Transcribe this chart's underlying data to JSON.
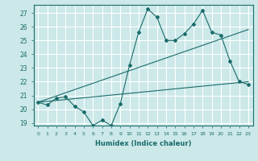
{
  "title": "",
  "xlabel": "Humidex (Indice chaleur)",
  "background_color": "#cce8e8",
  "grid_color": "#ffffff",
  "line_color": "#1a6b6b",
  "xlim": [
    -0.5,
    23.5
  ],
  "ylim": [
    18.8,
    27.6
  ],
  "yticks": [
    19,
    20,
    21,
    22,
    23,
    24,
    25,
    26,
    27
  ],
  "xticks": [
    0,
    1,
    2,
    3,
    4,
    5,
    6,
    7,
    8,
    9,
    10,
    11,
    12,
    13,
    14,
    15,
    16,
    17,
    18,
    19,
    20,
    21,
    22,
    23
  ],
  "data_x": [
    0,
    1,
    2,
    3,
    4,
    5,
    6,
    7,
    8,
    9,
    10,
    11,
    12,
    13,
    14,
    15,
    16,
    17,
    18,
    19,
    20,
    21,
    22,
    23
  ],
  "data_y": [
    20.5,
    20.3,
    20.8,
    20.9,
    20.2,
    19.8,
    18.8,
    19.2,
    18.8,
    20.4,
    23.2,
    25.6,
    27.3,
    26.7,
    25.0,
    25.0,
    25.5,
    26.2,
    27.2,
    25.6,
    25.4,
    23.5,
    22.0,
    21.8
  ],
  "trend1_x": [
    0,
    23
  ],
  "trend1_y": [
    20.5,
    25.8
  ],
  "trend2_x": [
    0,
    23
  ],
  "trend2_y": [
    20.5,
    22.0
  ]
}
